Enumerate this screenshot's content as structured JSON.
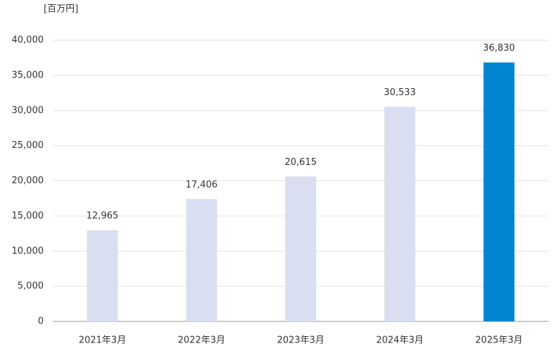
{
  "chart_data": {
    "type": "bar",
    "unit_label": "[百万円]",
    "categories": [
      "2021年3月",
      "2022年3月",
      "2023年3月",
      "2024年3月",
      "2025年3月"
    ],
    "values": [
      12965,
      17406,
      20615,
      30533,
      36830
    ],
    "value_labels": [
      "12,965",
      "17,406",
      "20,615",
      "30,533",
      "36,830"
    ],
    "colors": [
      "#d9dff0",
      "#d9dff0",
      "#d9dff0",
      "#d9dff0",
      "#0085d1"
    ],
    "ylim": [
      0,
      40000
    ],
    "yticks": [
      0,
      {
        "value": 5000,
        "label": "5,000"
      },
      {
        "value": 10000,
        "label": "10,000"
      },
      {
        "value": 15000,
        "label": "15,000"
      },
      {
        "value": 20000,
        "label": "20,000"
      },
      {
        "value": 25000,
        "label": "25,000"
      },
      {
        "value": 30000,
        "label": "30,000"
      },
      {
        "value": 35000,
        "label": "35,000"
      },
      {
        "value": 40000,
        "label": "40,000"
      }
    ],
    "grid": true
  }
}
